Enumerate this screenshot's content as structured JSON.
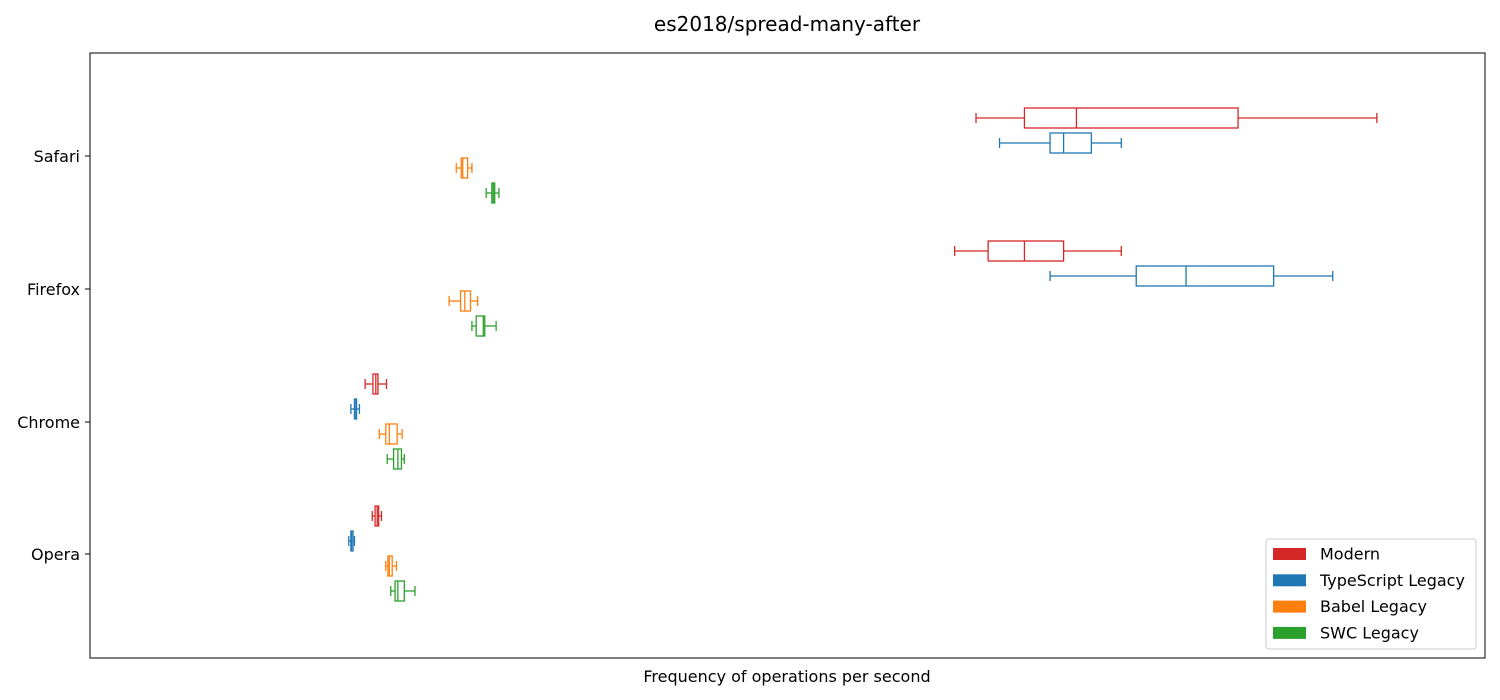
{
  "chart_data": {
    "type": "boxplot",
    "orientation": "horizontal",
    "title": "es2018/spread-many-after",
    "xlabel": "Frequency of operations per second",
    "ylabel": "",
    "x_ticks_shown": false,
    "grid": false,
    "legend_position": "lower-right",
    "categories": [
      "Safari",
      "Firefox",
      "Chrome",
      "Opera"
    ],
    "series": [
      {
        "name": "Modern",
        "color": "#d62728",
        "boxes": {
          "Safari": {
            "whislo": 952,
            "q1": 1020,
            "med": 1093,
            "q3": 1320,
            "whishi": 1515
          },
          "Firefox": {
            "whislo": 922,
            "q1": 969,
            "med": 1020,
            "q3": 1075,
            "whishi": 1156
          },
          "Chrome": {
            "whislo": 94,
            "q1": 105,
            "med": 109,
            "q3": 112,
            "whishi": 124
          },
          "Opera": {
            "whislo": 104,
            "q1": 108,
            "med": 111,
            "q3": 113,
            "whishi": 117
          }
        }
      },
      {
        "name": "TypeScript Legacy",
        "color": "#1f77b4",
        "boxes": {
          "Safari": {
            "whislo": 985,
            "q1": 1056,
            "med": 1075,
            "q3": 1114,
            "whishi": 1156
          },
          "Firefox": {
            "whislo": 1056,
            "q1": 1177,
            "med": 1247,
            "q3": 1370,
            "whishi": 1453
          },
          "Chrome": {
            "whislo": 74,
            "q1": 79,
            "med": 80,
            "q3": 82,
            "whishi": 86
          },
          "Opera": {
            "whislo": 71,
            "q1": 74,
            "med": 75,
            "q3": 77,
            "whishi": 79
          }
        }
      },
      {
        "name": "Babel Legacy",
        "color": "#ff7f0e",
        "boxes": {
          "Safari": {
            "whislo": 222,
            "q1": 229,
            "med": 231,
            "q3": 238,
            "whishi": 244
          },
          "Firefox": {
            "whislo": 212,
            "q1": 228,
            "med": 234,
            "q3": 242,
            "whishi": 252
          },
          "Chrome": {
            "whislo": 114,
            "q1": 123,
            "med": 128,
            "q3": 139,
            "whishi": 146
          },
          "Opera": {
            "whislo": 123,
            "q1": 126,
            "med": 128,
            "q3": 132,
            "whishi": 138
          }
        }
      },
      {
        "name": "SWC Legacy",
        "color": "#2ca02c",
        "boxes": {
          "Safari": {
            "whislo": 264,
            "q1": 272,
            "med": 274,
            "q3": 276,
            "whishi": 282
          },
          "Firefox": {
            "whislo": 244,
            "q1": 250,
            "med": 260,
            "q3": 262,
            "whishi": 278
          },
          "Chrome": {
            "whislo": 125,
            "q1": 134,
            "med": 140,
            "q3": 145,
            "whishi": 149
          },
          "Opera": {
            "whislo": 130,
            "q1": 136,
            "med": 140,
            "q3": 149,
            "whishi": 164
          }
        }
      }
    ]
  }
}
